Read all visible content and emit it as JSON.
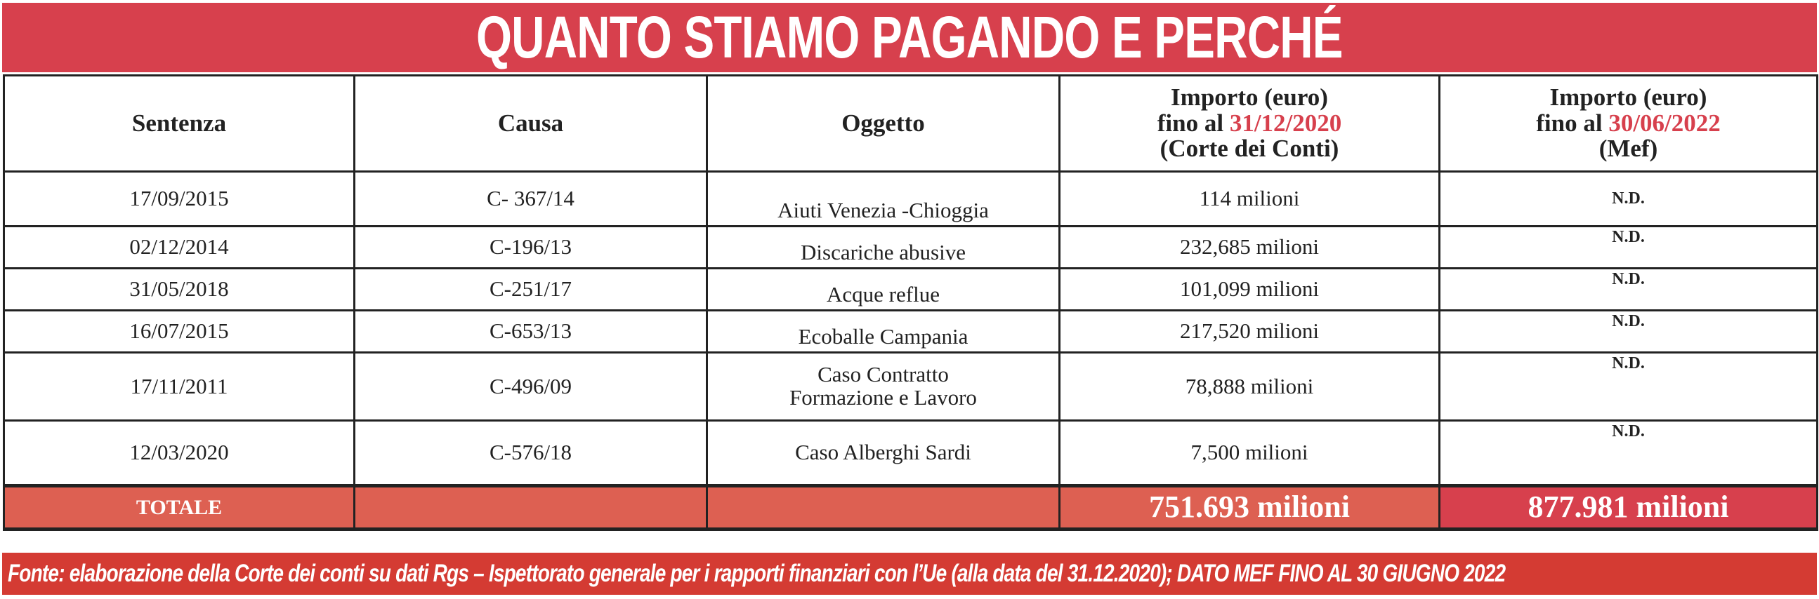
{
  "title": "QUANTO STIAMO PAGANDO E PERCHÉ",
  "colors": {
    "title_bg": "#d7404d",
    "total_row_bg": "#dd6052",
    "mef_total_bg": "#d7404d",
    "footer_bg": "#d43b33",
    "date_highlight": "#d7404d"
  },
  "headers": {
    "sentenza": "Sentenza",
    "causa": "Causa",
    "oggetto": "Oggetto",
    "importo_cdc": {
      "line1": "Importo (euro)",
      "line2_prefix": "fino al ",
      "date": "31/12/2020",
      "line3": "(Corte dei Conti)"
    },
    "importo_mef": {
      "line1": "Importo (euro)",
      "line2_prefix": "fino al ",
      "date": "30/06/2022",
      "line3": "(Mef)"
    }
  },
  "rows": [
    {
      "sentenza": "17/09/2015",
      "causa": "C- 367/14",
      "oggetto": "Aiuti Venezia -Chioggia",
      "importo_cdc": "114 milioni",
      "importo_mef": "N.D."
    },
    {
      "sentenza": "02/12/2014",
      "causa": "C-196/13",
      "oggetto": "Discariche abusive",
      "importo_cdc": "232,685 milioni",
      "importo_mef": "N.D."
    },
    {
      "sentenza": "31/05/2018",
      "causa": "C-251/17",
      "oggetto": "Acque reflue",
      "importo_cdc": "101,099 milioni",
      "importo_mef": "N.D."
    },
    {
      "sentenza": "16/07/2015",
      "causa": "C-653/13",
      "oggetto": "Ecoballe Campania",
      "importo_cdc": "217,520 milioni",
      "importo_mef": "N.D."
    },
    {
      "sentenza": "17/11/2011",
      "causa": "C-496/09",
      "oggetto_line1": "Caso Contratto",
      "oggetto_line2": "Formazione e Lavoro",
      "importo_cdc": "78,888 milioni",
      "importo_mef": "N.D."
    },
    {
      "sentenza": "12/03/2020",
      "causa": "C-576/18",
      "oggetto": "Caso Alberghi Sardi",
      "importo_cdc": "7,500 milioni",
      "importo_mef": "N.D."
    }
  ],
  "totals": {
    "label": "TOTALE",
    "importo_cdc": "751.693 milioni",
    "importo_mef": "877.981 milioni"
  },
  "footer": "Fonte: elaborazione della Corte dei conti su dati Rgs – Ispettorato generale per i rapporti finanziari con l’Ue (alla data del 31.12.2020); DATO MEF FINO AL 30 GIUGNO 2022"
}
